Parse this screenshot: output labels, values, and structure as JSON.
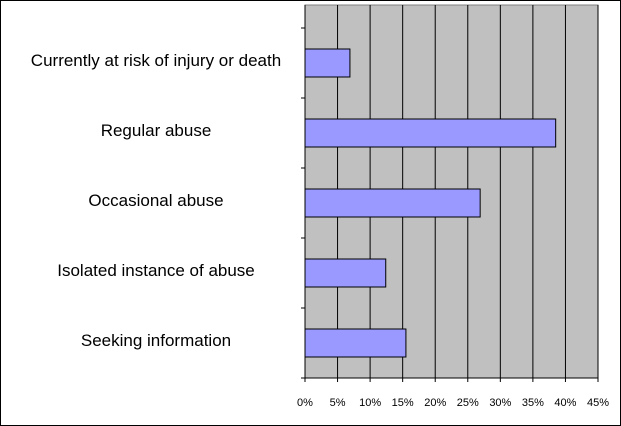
{
  "chart_data": {
    "type": "bar",
    "orientation": "horizontal",
    "categories": [
      "Currently at risk of injury or death",
      "Regular abuse",
      "Occasional abuse",
      "Isolated instance of abuse",
      "Seeking information"
    ],
    "values": [
      6.9,
      38.5,
      26.9,
      12.4,
      15.5
    ],
    "color": "#9999ff",
    "xlim": [
      0,
      45
    ],
    "xticks": [
      {
        "value": 0,
        "label": "0%"
      },
      {
        "value": 5,
        "label": "5%"
      },
      {
        "value": 10,
        "label": "10%"
      },
      {
        "value": 15,
        "label": "15%"
      },
      {
        "value": 20,
        "label": "20%"
      },
      {
        "value": 25,
        "label": "25%"
      },
      {
        "value": 30,
        "label": "30%"
      },
      {
        "value": 35,
        "label": "35%"
      },
      {
        "value": 40,
        "label": "40%"
      },
      {
        "value": 45,
        "label": "45%"
      }
    ],
    "grid": true
  }
}
